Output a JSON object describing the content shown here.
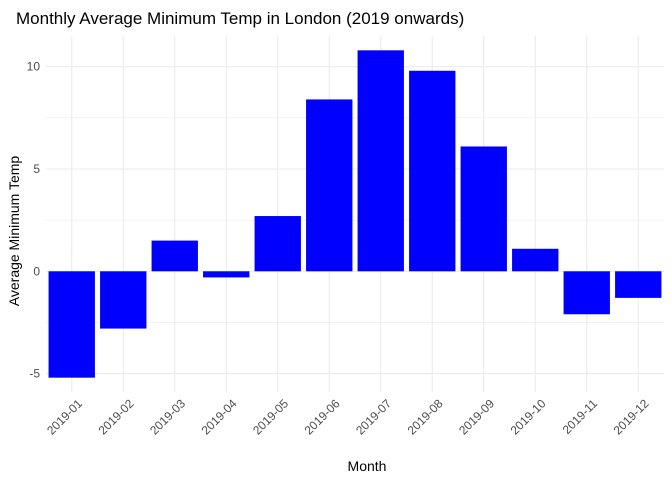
{
  "chart_data": {
    "type": "bar",
    "title": "Monthly Average Minimum Temp in London (2019 onwards)",
    "xlabel": "Month",
    "ylabel": "Average Minimum Temp",
    "categories": [
      "2019-01",
      "2019-02",
      "2019-03",
      "2019-04",
      "2019-05",
      "2019-06",
      "2019-07",
      "2019-08",
      "2019-09",
      "2019-10",
      "2019-11",
      "2019-12"
    ],
    "values": [
      -5.2,
      -2.8,
      1.5,
      -0.3,
      2.7,
      8.4,
      10.8,
      9.8,
      6.1,
      1.1,
      -2.1,
      -1.3
    ],
    "ylim": [
      -5.9,
      11.5
    ],
    "yticks": [
      "-5",
      "0",
      "5",
      "10"
    ],
    "bar_color": "#0000FF",
    "grid": true,
    "grid_color": "#EBEBEB",
    "legend": "none"
  }
}
